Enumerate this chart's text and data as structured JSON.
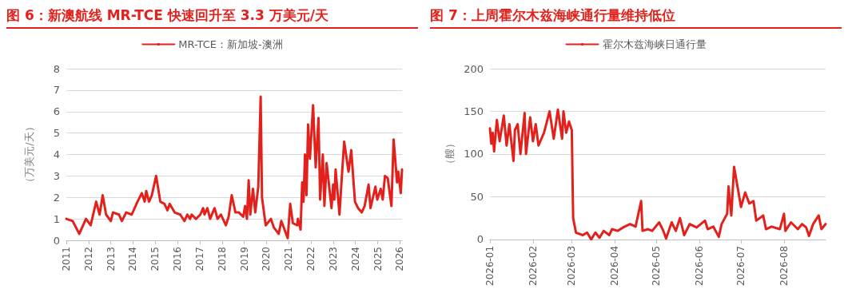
{
  "chart_data": [
    {
      "type": "line",
      "title": "图 6：新澳航线 MR-TCE 快速回升至 3.3 万美元/天",
      "ylabel": "（万美元/天）",
      "legend": "top",
      "grid": "y",
      "marker": "none",
      "xlim": [
        "2011-01-01",
        "2026-02-05"
      ],
      "xticks": [
        "2011",
        "2012",
        "2013",
        "2014",
        "2015",
        "2016",
        "2017",
        "2018",
        "2019",
        "2020",
        "2021",
        "2022",
        "2023",
        "2024",
        "2025",
        "2026"
      ],
      "ylim": [
        0,
        8
      ],
      "yticks": [
        0,
        1,
        2,
        3,
        4,
        5,
        6,
        7,
        8
      ],
      "series": [
        {
          "name": "MR-TCE：新加坡-澳洲",
          "color": "#e3211c",
          "x": [
            "2011-01-01",
            "2011-04-15",
            "2011-08-01",
            "2011-11-20",
            "2012-02-05",
            "2012-05-05",
            "2012-07-01",
            "2012-08-20",
            "2012-10-15",
            "2013-01-01",
            "2013-02-05",
            "2013-05-15",
            "2013-07-01",
            "2013-09-10",
            "2013-12-10",
            "2014-03-15",
            "2014-05-25",
            "2014-07-10",
            "2014-08-05",
            "2014-09-20",
            "2014-11-05",
            "2015-01-15",
            "2015-03-25",
            "2015-06-01",
            "2015-07-20",
            "2015-08-25",
            "2015-11-15",
            "2016-02-15",
            "2016-04-25",
            "2016-06-10",
            "2016-07-25",
            "2016-08-20",
            "2016-10-30",
            "2017-01-10",
            "2017-02-25",
            "2017-03-20",
            "2017-05-05",
            "2017-06-20",
            "2017-09-01",
            "2017-10-20",
            "2017-12-15",
            "2018-03-05",
            "2018-04-20",
            "2018-06-10",
            "2018-08-10",
            "2018-10-05",
            "2018-12-15",
            "2019-01-15",
            "2019-02-15",
            "2019-03-15",
            "2019-04-10",
            "2019-05-25",
            "2019-07-01",
            "2019-08-20",
            "2019-09-28",
            "2019-10-20",
            "2019-12-20",
            "2020-03-15",
            "2020-05-01",
            "2020-07-20",
            "2020-09-01",
            "2020-12-15",
            "2021-01-25",
            "2021-03-10",
            "2021-05-20",
            "2021-06-01",
            "2021-07-15",
            "2021-08-10",
            "2021-09-01",
            "2021-09-25",
            "2021-10-20",
            "2021-11-15",
            "2021-12-15",
            "2022-02-05",
            "2022-03-20",
            "2022-05-05",
            "2022-06-01",
            "2022-07-15",
            "2022-08-10",
            "2022-09-15",
            "2022-12-05",
            "2023-01-01",
            "2023-01-20",
            "2023-02-10",
            "2023-04-15",
            "2023-05-15",
            "2023-07-01",
            "2023-09-10",
            "2023-10-25",
            "2023-12-25",
            "2024-02-15",
            "2024-04-15",
            "2024-06-01",
            "2024-08-05",
            "2024-09-05",
            "2024-11-25",
            "2024-12-25",
            "2025-02-20",
            "2025-03-25",
            "2025-05-01",
            "2025-06-15",
            "2025-08-15",
            "2025-09-20",
            "2025-11-15",
            "2025-12-05",
            "2026-01-15",
            "2026-02-05"
          ],
          "values": [
            1.0,
            0.9,
            0.3,
            1.0,
            0.7,
            1.8,
            1.2,
            2.1,
            1.2,
            0.9,
            1.3,
            1.2,
            0.9,
            1.3,
            1.2,
            1.8,
            2.2,
            1.8,
            2.3,
            1.8,
            2.1,
            3.0,
            1.8,
            1.7,
            1.4,
            1.7,
            1.3,
            1.2,
            0.9,
            1.2,
            1.0,
            1.2,
            1.0,
            1.2,
            1.5,
            1.2,
            1.5,
            1.0,
            1.5,
            1.0,
            1.2,
            0.7,
            1.1,
            2.1,
            1.3,
            1.3,
            1.1,
            1.6,
            1.0,
            2.8,
            1.2,
            2.4,
            1.3,
            2.5,
            6.7,
            2.0,
            0.7,
            1.0,
            0.6,
            0.3,
            0.9,
            0.1,
            1.7,
            0.8,
            0.7,
            1.0,
            0.5,
            2.7,
            1.8,
            4.0,
            2.1,
            5.4,
            3.8,
            6.3,
            3.4,
            5.7,
            1.9,
            4.0,
            1.6,
            3.6,
            1.5,
            2.6,
            1.9,
            3.3,
            1.2,
            2.6,
            4.6,
            3.2,
            4.2,
            1.8,
            1.5,
            1.3,
            1.6,
            2.6,
            1.5,
            2.5,
            1.9,
            2.4,
            1.9,
            3.0,
            2.9,
            1.6,
            4.7,
            2.7,
            3.2,
            2.2,
            3.3
          ]
        }
      ]
    },
    {
      "type": "line",
      "title": "图 7：上周霍尔木兹海峡通行量维持低位",
      "ylabel": "（艘）",
      "legend": "top",
      "grid": "y",
      "marker": "none",
      "xlim": [
        "2026-01-01",
        "2026-08-31"
      ],
      "xticks": [
        "2026-01",
        "2026-02",
        "2026-03",
        "2026-04",
        "2026-05",
        "2026-06",
        "2026-07",
        "2026-08"
      ],
      "ylim": [
        0,
        200
      ],
      "yticks": [
        0,
        50,
        100,
        150,
        200
      ],
      "series": [
        {
          "name": "霍尔木兹海峡日通行量",
          "color": "#e3211c",
          "x": [
            "2026-01-01",
            "2026-01-02",
            "2026-01-03",
            "2026-01-04",
            "2026-01-06",
            "2026-01-08",
            "2026-01-11",
            "2026-01-13",
            "2026-01-15",
            "2026-01-18",
            "2026-01-19",
            "2026-01-21",
            "2026-01-23",
            "2026-01-26",
            "2026-01-27",
            "2026-01-30",
            "2026-02-01",
            "2026-02-03",
            "2026-02-05",
            "2026-02-09",
            "2026-02-13",
            "2026-02-16",
            "2026-02-19",
            "2026-02-22",
            "2026-02-23",
            "2026-02-25",
            "2026-02-27",
            "2026-03-01",
            "2026-03-02",
            "2026-03-04",
            "2026-03-09",
            "2026-03-12",
            "2026-03-15",
            "2026-03-18",
            "2026-03-21",
            "2026-03-24",
            "2026-03-28",
            "2026-03-30",
            "2026-04-03",
            "2026-04-07",
            "2026-04-12",
            "2026-04-16",
            "2026-04-20",
            "2026-04-21",
            "2026-04-25",
            "2026-04-28",
            "2026-05-03",
            "2026-05-06",
            "2026-05-08",
            "2026-05-12",
            "2026-05-15",
            "2026-05-18",
            "2026-05-21",
            "2026-05-25",
            "2026-05-30",
            "2026-06-05",
            "2026-06-07",
            "2026-06-11",
            "2026-06-15",
            "2026-06-17",
            "2026-06-21",
            "2026-06-22",
            "2026-06-24",
            "2026-06-26",
            "2026-07-01",
            "2026-07-04",
            "2026-07-07",
            "2026-07-10",
            "2026-07-12",
            "2026-07-17",
            "2026-07-19",
            "2026-07-23",
            "2026-07-29",
            "2026-08-01",
            "2026-08-02",
            "2026-08-06",
            "2026-08-11",
            "2026-08-14",
            "2026-08-17",
            "2026-08-19",
            "2026-08-22",
            "2026-08-26",
            "2026-08-28",
            "2026-08-31"
          ],
          "values": [
            130,
            112,
            125,
            103,
            140,
            115,
            145,
            110,
            135,
            92,
            128,
            135,
            100,
            148,
            100,
            143,
            115,
            135,
            110,
            125,
            150,
            118,
            152,
            118,
            150,
            125,
            138,
            128,
            25,
            8,
            5,
            8,
            0,
            8,
            2,
            10,
            5,
            12,
            10,
            14,
            18,
            15,
            45,
            10,
            12,
            10,
            20,
            10,
            1,
            20,
            10,
            25,
            5,
            18,
            14,
            22,
            12,
            15,
            3,
            18,
            30,
            62,
            28,
            85,
            38,
            55,
            42,
            45,
            22,
            28,
            12,
            15,
            12,
            30,
            10,
            20,
            12,
            18,
            14,
            4,
            18,
            28,
            12,
            18
          ]
        }
      ]
    }
  ]
}
